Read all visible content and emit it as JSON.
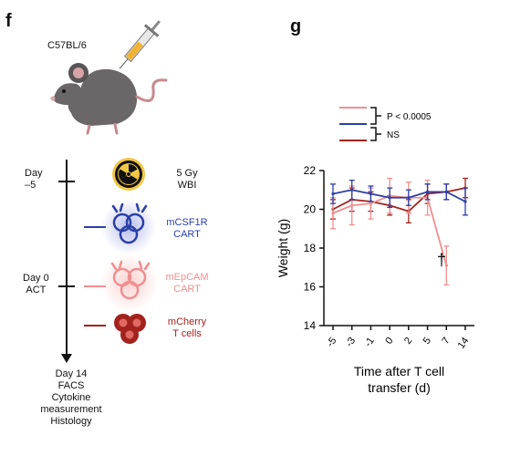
{
  "panels": {
    "left_letter": "f",
    "right_letter": "g"
  },
  "mouse_label": "C57BL/6",
  "timeline": {
    "events": [
      {
        "time": "Day\n–5",
        "treatment": "5 Gy\nWBI"
      },
      {
        "time": "Day 0\nACT"
      },
      {
        "time": "Day 14\nFACS\nCytokine\nmeasurement\nHistology"
      }
    ],
    "groups": [
      {
        "label": "mCSF1R\nCART",
        "color": "#2a3fa8"
      },
      {
        "label": "mEpCAM\nCART",
        "color": "#f08f8f"
      },
      {
        "label": "mCherry\nT cells",
        "color": "#a3221e"
      }
    ]
  },
  "colors": {
    "mCSF1R": "#2a3fa8",
    "mEpCAM": "#f08f8f",
    "mCherry": "#a3221e",
    "radiation_yellow": "#f2c744"
  },
  "stat_legend": {
    "p_value": "P < 0.0005",
    "ns": "NS"
  },
  "dagger": "†",
  "chart_data": {
    "type": "line",
    "xlabel": "Time after T cell\ntransfer (d)",
    "ylabel": "Weight (g)",
    "x": [
      "-5",
      "-3",
      "-1",
      "0",
      "2",
      "5",
      "7",
      "14"
    ],
    "ylim": [
      14,
      22
    ],
    "yticks": [
      14,
      16,
      18,
      20,
      22
    ],
    "grid": false,
    "series": [
      {
        "color": "#a3221e",
        "values": [
          20.0,
          20.5,
          20.4,
          20.2,
          19.9,
          20.8,
          20.9,
          21.1
        ],
        "err": [
          0.5,
          0.6,
          0.5,
          0.5,
          0.6,
          0.5,
          0.4,
          0.5
        ]
      },
      {
        "color": "#f08f8f",
        "values": [
          19.8,
          20.2,
          20.3,
          20.7,
          20.6,
          20.6,
          17.1,
          null
        ],
        "err": [
          0.8,
          1.0,
          0.8,
          0.9,
          0.8,
          0.9,
          1.0,
          null
        ]
      },
      {
        "color": "#2a3fa8",
        "values": [
          20.8,
          21.0,
          20.8,
          20.6,
          20.6,
          20.9,
          20.9,
          20.4
        ],
        "err": [
          0.5,
          0.5,
          0.4,
          0.5,
          0.4,
          0.4,
          0.4,
          0.7
        ]
      }
    ]
  }
}
